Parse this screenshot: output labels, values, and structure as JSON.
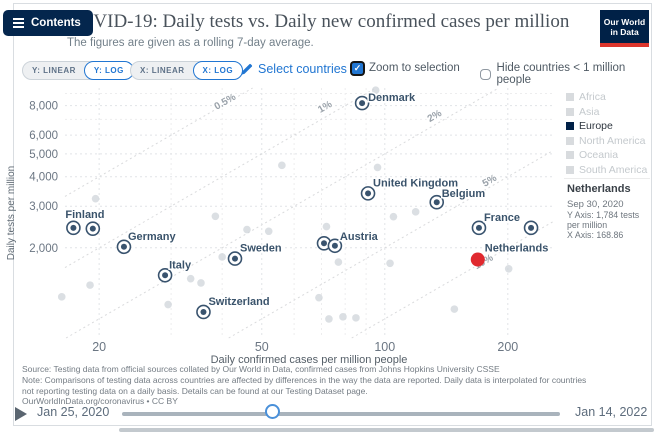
{
  "colors": {
    "navy": "#002147",
    "logo_red": "#dc352c",
    "accent_blue": "#2176d2",
    "point_navy": "#39536e",
    "highlight_red": "#e0292f",
    "muted_grey": "#d8dbde"
  },
  "header": {
    "contents_label": "Contents",
    "title": "COVID-19: Daily tests vs. Daily new confirmed cases per million",
    "subtitle": "The figures are given as a rolling 7-day average.",
    "logo_line1": "Our World",
    "logo_line2": "in Data"
  },
  "controls": {
    "y_linear": "Y: LINEAR",
    "y_log": "Y: LOG",
    "x_linear": "X: LINEAR",
    "x_log": "X: LOG",
    "select_countries": "Select countries",
    "zoom_to_selection": "Zoom to selection",
    "zoom_checked": true,
    "hide_small": "Hide countries < 1 million people",
    "hide_checked": false
  },
  "legend": {
    "items": [
      {
        "label": "Africa",
        "muted": true
      },
      {
        "label": "Asia",
        "muted": true
      },
      {
        "label": "Europe",
        "muted": false
      },
      {
        "label": "North America",
        "muted": true
      },
      {
        "label": "Oceania",
        "muted": true
      },
      {
        "label": "South America",
        "muted": true
      }
    ]
  },
  "tooltip": {
    "country": "Netherlands",
    "date": "Sep 30, 2020",
    "y_value": "Y Axis: 1,784 tests per million",
    "x_value": "X Axis: 168.86"
  },
  "chart_data": {
    "type": "scatter",
    "xlabel": "Daily confirmed cases per million people",
    "ylabel": "Daily tests per million",
    "x_scale": "log",
    "y_scale": "log",
    "xlim": [
      16.5,
      258
    ],
    "ylim": [
      830,
      9500
    ],
    "x_ticks": [
      20,
      50,
      100,
      200
    ],
    "x_minor_ticks": [
      30,
      40,
      60,
      70,
      80,
      90
    ],
    "y_ticks": [
      2000,
      3000,
      4000,
      5000,
      6000,
      8000
    ],
    "y_minor_ticks": [
      7000,
      9000
    ],
    "rate_lines": [
      {
        "label": "0.5%",
        "rate": 0.005,
        "label_at": [
          41,
          8100
        ]
      },
      {
        "label": "1%",
        "rate": 0.01,
        "label_at": [
          72,
          7700
        ]
      },
      {
        "label": "2%",
        "rate": 0.02,
        "label_at": [
          133.5,
          7050
        ]
      },
      {
        "label": "5%",
        "rate": 0.05,
        "label_at": [
          182,
          3750
        ]
      },
      {
        "label": "10%",
        "rate": 0.1,
        "label_at": [
          176,
          1700
        ]
      }
    ],
    "series": [
      {
        "name": "Finland",
        "points": [
          [
            17.3,
            2430
          ],
          [
            19.3,
            2410
          ]
        ],
        "label_on": 0,
        "label_offset": [
          -8,
          -10
        ]
      },
      {
        "name": "Germany",
        "points": [
          [
            23,
            2020
          ]
        ],
        "label_offset": [
          4,
          -7
        ]
      },
      {
        "name": "Italy",
        "points": [
          [
            29,
            1530
          ]
        ],
        "label_offset": [
          4,
          -7
        ]
      },
      {
        "name": "Sweden",
        "points": [
          [
            43,
            1800
          ]
        ],
        "label_offset": [
          5,
          -7
        ]
      },
      {
        "name": "Switzerland",
        "points": [
          [
            36,
            1070
          ]
        ],
        "label_offset": [
          5,
          -7
        ]
      },
      {
        "name": "Austria",
        "points": [
          [
            71,
            2090
          ],
          [
            75.5,
            2040
          ]
        ],
        "label_on": 1,
        "label_offset": [
          5,
          -6
        ]
      },
      {
        "name": "Denmark",
        "points": [
          [
            88,
            8200
          ]
        ],
        "label_offset": [
          6,
          -2
        ]
      },
      {
        "name": "United Kingdom",
        "points": [
          [
            91,
            3400
          ]
        ],
        "label_offset": [
          5,
          -7
        ]
      },
      {
        "name": "Belgium",
        "points": [
          [
            134,
            3120
          ]
        ],
        "label_offset": [
          5,
          -5
        ]
      },
      {
        "name": "France",
        "points": [
          [
            170,
            2430
          ]
        ],
        "label_offset": [
          5,
          -7
        ]
      },
      {
        "name": "",
        "points": [
          [
            228,
            2430
          ]
        ],
        "label_offset": [
          5,
          -7
        ]
      },
      {
        "name": "Netherlands",
        "points": [
          [
            168.86,
            1784
          ]
        ],
        "marker": "solid",
        "color": "#e0292f",
        "label_offset": [
          7,
          -8
        ]
      }
    ],
    "background_points": [
      [
        16.2,
        1240
      ],
      [
        19,
        1390
      ],
      [
        19.6,
        3230
      ],
      [
        29.5,
        1150
      ],
      [
        33.5,
        1480
      ],
      [
        35.5,
        1420
      ],
      [
        38.5,
        2720
      ],
      [
        40,
        1830
      ],
      [
        46,
        2390
      ],
      [
        52,
        2350
      ],
      [
        56,
        4470
      ],
      [
        69,
        1230
      ],
      [
        72,
        2460
      ],
      [
        73,
        1000
      ],
      [
        79,
        1020
      ],
      [
        85,
        1010
      ],
      [
        77,
        1740
      ],
      [
        95,
        9300
      ],
      [
        96,
        4380
      ],
      [
        103,
        1720
      ],
      [
        105,
        2710
      ],
      [
        119,
        2840
      ],
      [
        148,
        1100
      ],
      [
        201,
        1630
      ]
    ]
  },
  "footer": {
    "source_lines": [
      "Source: Testing data from official sources collated by Our World in Data, confirmed cases from Johns Hopkins University CSSE",
      "Note: Comparisons of testing data across countries are affected by differences in the way the data are reported. Daily data is interpolated for countries",
      "not reporting testing data on a daily basis. Details can be found at our Testing Dataset page."
    ],
    "attribution": "OurWorldInData.org/coronavirus • CC BY"
  },
  "timeline": {
    "start": "Jan 25, 2020",
    "end": "Jan 14, 2022"
  }
}
